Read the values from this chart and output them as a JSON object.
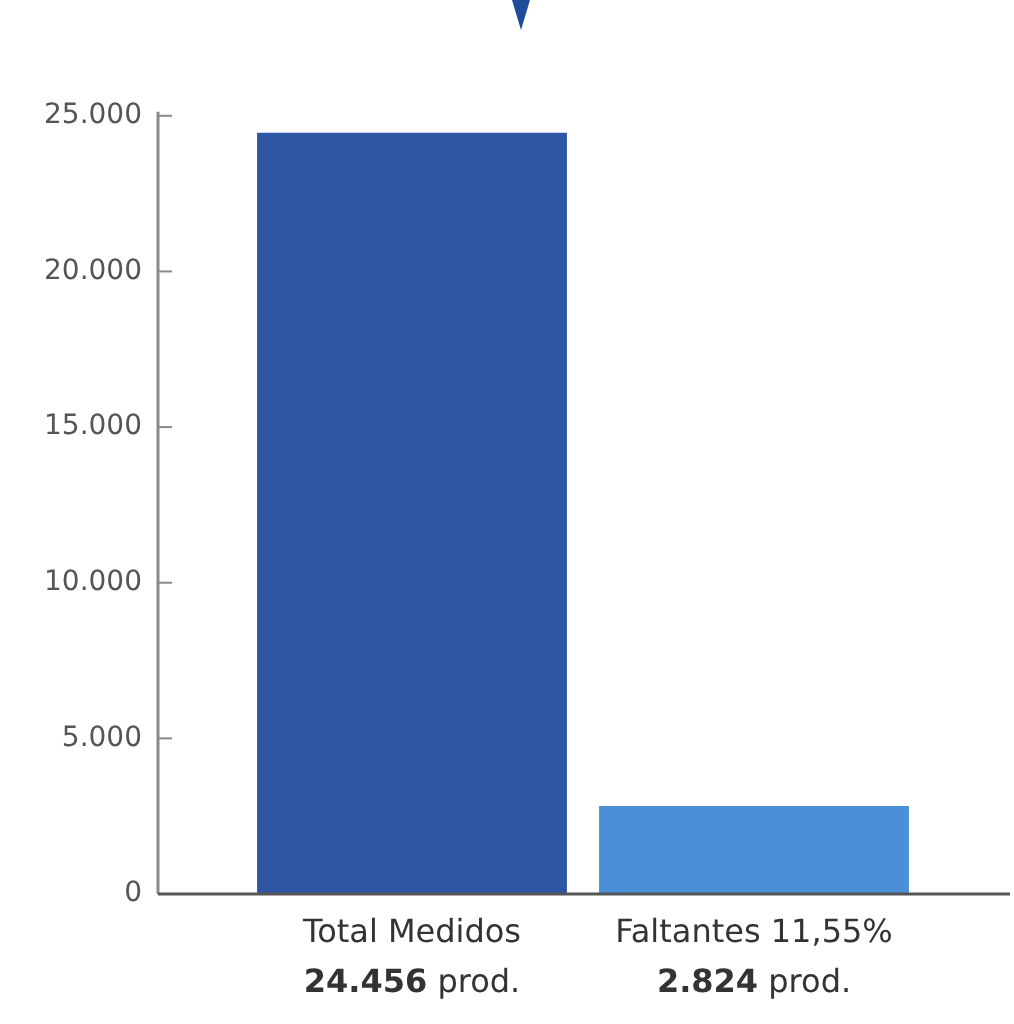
{
  "chart_data": {
    "type": "bar",
    "categories": [
      "Total Medidos",
      "Faltantes 11,55%"
    ],
    "values": [
      24456,
      2824
    ],
    "colors": [
      "#2f55a5",
      "#4a8fd8"
    ],
    "value_labels": [
      "24.456 prod.",
      "2.824 prod."
    ],
    "ylim": [
      0,
      25000
    ],
    "yticks": [
      0,
      {
        "value": 5000,
        "label": "5.000"
      },
      {
        "value": 10000,
        "label": "10.000"
      },
      {
        "value": 15000,
        "label": "15.000"
      },
      {
        "value": 20000,
        "label": "20.000"
      },
      {
        "value": 25000,
        "label": "25.000"
      }
    ]
  }
}
